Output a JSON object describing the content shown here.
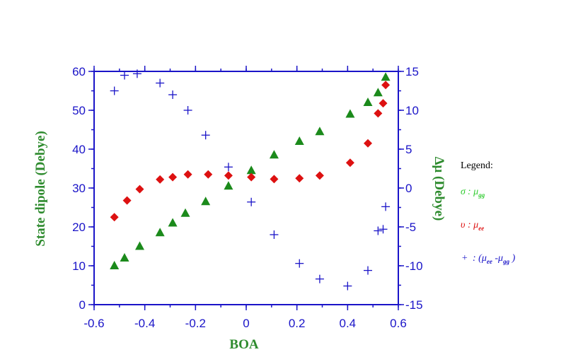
{
  "chart_data": {
    "type": "scatter",
    "xlabel": "BOA",
    "ylabel_left": "State dipole (Debye)",
    "ylabel_right": "Δμ  (Debye)",
    "xlim": [
      -0.6,
      0.6
    ],
    "ylim_left": [
      0,
      60
    ],
    "ylim_right": [
      -15,
      15
    ],
    "x_ticks": [
      -0.6,
      -0.4,
      -0.2,
      0,
      0.2,
      0.4,
      0.6
    ],
    "x_tick_labels": [
      "-0.6",
      "-0.4",
      "-0.2",
      "0",
      "0.2",
      "0.4",
      "0.6"
    ],
    "y_left_ticks": [
      0,
      10,
      20,
      30,
      40,
      50,
      60
    ],
    "y_left_tick_labels": [
      "0",
      "10",
      "20",
      "30",
      "40",
      "50",
      "60"
    ],
    "y_right_ticks": [
      -15,
      -10,
      -5,
      0,
      5,
      10,
      15
    ],
    "y_right_tick_labels": [
      "-15",
      "-10",
      "-5",
      "0",
      "5",
      "10",
      "15"
    ],
    "grid": false,
    "legend_position": "right",
    "series": [
      {
        "name": "μgg",
        "axis": "left",
        "marker": "triangle",
        "color": "#1b8a1b",
        "x": [
          -0.52,
          -0.48,
          -0.42,
          -0.34,
          -0.29,
          -0.24,
          -0.16,
          -0.07,
          0.02,
          0.11,
          0.21,
          0.29,
          0.41,
          0.48,
          0.52,
          0.55
        ],
        "y": [
          10,
          12,
          15,
          18.5,
          21,
          23.5,
          26.5,
          30.5,
          34.5,
          38.5,
          42,
          44.5,
          49,
          52,
          54.5,
          58.5
        ]
      },
      {
        "name": "μee",
        "axis": "left",
        "marker": "diamond",
        "color": "#dd1111",
        "x": [
          -0.52,
          -0.47,
          -0.42,
          -0.34,
          -0.29,
          -0.23,
          -0.15,
          -0.07,
          0.02,
          0.11,
          0.21,
          0.29,
          0.41,
          0.48,
          0.52,
          0.54,
          0.55
        ],
        "y": [
          22.5,
          26.8,
          29.7,
          32.2,
          32.8,
          33.5,
          33.5,
          33.2,
          32.8,
          32.3,
          32.5,
          33.2,
          36.5,
          41.5,
          49.2,
          51.8,
          56.5
        ]
      },
      {
        "name": "(μee - μgg)",
        "axis": "right",
        "marker": "plus",
        "color": "#1a14c8",
        "x": [
          -0.52,
          -0.48,
          -0.43,
          -0.34,
          -0.29,
          -0.23,
          -0.16,
          -0.07,
          0.02,
          0.11,
          0.21,
          0.29,
          0.4,
          0.48,
          0.52,
          0.54,
          0.55
        ],
        "y": [
          12.5,
          14.5,
          14.7,
          13.5,
          12,
          10,
          6.8,
          2.7,
          -1.8,
          -6,
          -9.7,
          -11.7,
          -12.6,
          -10.6,
          -5.5,
          -5.3,
          -2.4
        ]
      }
    ]
  },
  "legend": {
    "title": "Legend:",
    "items": [
      {
        "symbol": "σ",
        "color": "#33cc33",
        "label": " : μ",
        "sub": "gg"
      },
      {
        "symbol": "υ",
        "color": "#dd1111",
        "label": " : μ",
        "sub": "ee"
      },
      {
        "symbol": "+",
        "color": "#1a14c8",
        "label": " : (μ",
        "sub": "ee",
        "label2": " -μ",
        "sub2": "gg",
        "label3": " )"
      }
    ]
  }
}
